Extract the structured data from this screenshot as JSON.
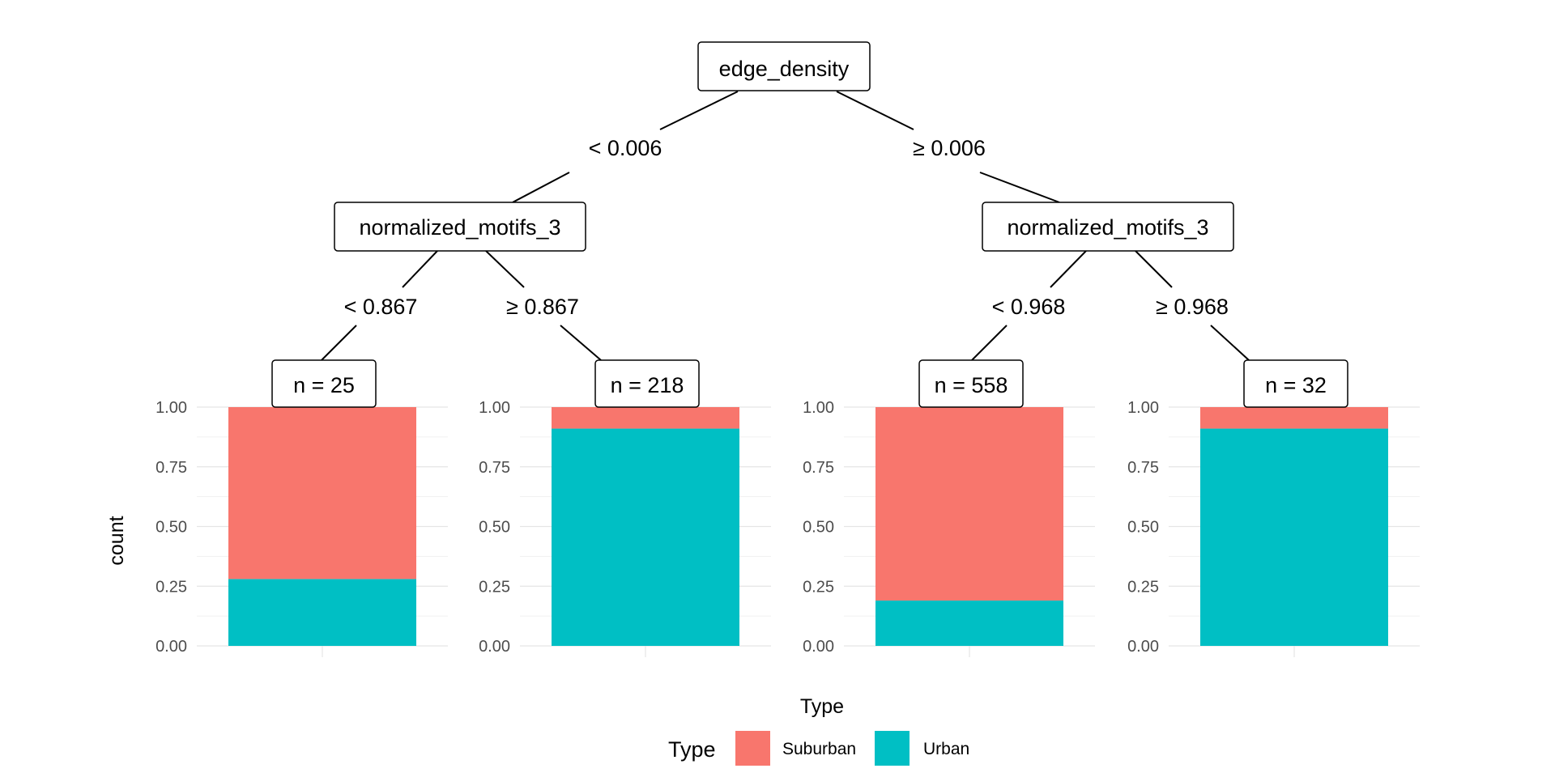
{
  "chart_data": {
    "type": "bar",
    "subtype": "decision-tree-terminal-stacked-bars",
    "ylabel": "count",
    "xlabel": "Type",
    "ylim": [
      0,
      1
    ],
    "y_ticks": [
      "0.00",
      "0.25",
      "0.50",
      "0.75",
      "1.00"
    ],
    "y_tick_values": [
      0,
      0.25,
      0.5,
      0.75,
      1
    ],
    "grid": true,
    "legend": {
      "title": "Type",
      "position": "bottom",
      "entries": [
        {
          "name": "Suburban",
          "color": "#F8766D"
        },
        {
          "name": "Urban",
          "color": "#00BFC4"
        }
      ]
    },
    "tree": {
      "root": {
        "label": "edge_density"
      },
      "edges": {
        "root_left": "< 0.006",
        "root_right": "≥ 0.006",
        "left_left": "< 0.867",
        "left_right": "≥ 0.867",
        "right_left": "< 0.968",
        "right_right": "≥ 0.968"
      },
      "inner": [
        {
          "label": "normalized_motifs_3"
        },
        {
          "label": "normalized_motifs_3"
        }
      ]
    },
    "leaves": [
      {
        "label": "n = 25",
        "values": {
          "Suburban": 0.72,
          "Urban": 0.28
        }
      },
      {
        "label": "n = 218",
        "values": {
          "Suburban": 0.09,
          "Urban": 0.91
        }
      },
      {
        "label": "n = 558",
        "values": {
          "Suburban": 0.81,
          "Urban": 0.19
        }
      },
      {
        "label": "n = 32",
        "values": {
          "Suburban": 0.09,
          "Urban": 0.91
        }
      }
    ]
  }
}
